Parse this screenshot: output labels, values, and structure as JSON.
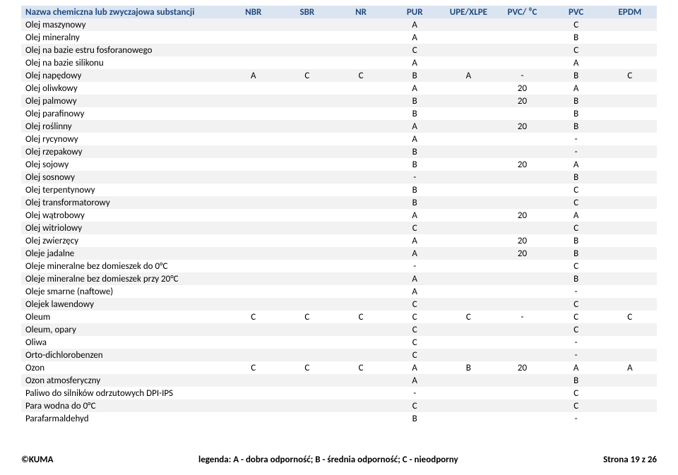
{
  "header": {
    "name_col": "Nazwa chemiczna lub zwyczajowa substancji",
    "cols": [
      "NBR",
      "SBR",
      "NR",
      "PUR",
      "UPE/XLPE",
      "PVC/ ⁰C",
      "PVC",
      "EPDM"
    ],
    "bg": "#dbe5f1",
    "text": "#1f497d"
  },
  "stripes": {
    "odd": "#f2f2f2",
    "even": "#ffffff"
  },
  "rows": [
    {
      "name": "Olej maszynowy",
      "v": [
        "",
        "",
        "",
        "A",
        "",
        "",
        "C",
        ""
      ]
    },
    {
      "name": "Olej mineralny",
      "v": [
        "",
        "",
        "",
        "A",
        "",
        "",
        "B",
        ""
      ]
    },
    {
      "name": "Olej na bazie estru fosforanowego",
      "v": [
        "",
        "",
        "",
        "C",
        "",
        "",
        "C",
        ""
      ]
    },
    {
      "name": "Olej na bazie silikonu",
      "v": [
        "",
        "",
        "",
        "A",
        "",
        "",
        "A",
        ""
      ]
    },
    {
      "name": "Olej napędowy",
      "v": [
        "A",
        "C",
        "C",
        "B",
        "A",
        "-",
        "B",
        "C"
      ]
    },
    {
      "name": "Olej oliwkowy",
      "v": [
        "",
        "",
        "",
        "A",
        "",
        "20",
        "A",
        ""
      ]
    },
    {
      "name": "Olej palmowy",
      "v": [
        "",
        "",
        "",
        "B",
        "",
        "20",
        "B",
        ""
      ]
    },
    {
      "name": "Olej parafinowy",
      "v": [
        "",
        "",
        "",
        "B",
        "",
        "",
        "B",
        ""
      ]
    },
    {
      "name": "Olej roślinny",
      "v": [
        "",
        "",
        "",
        "A",
        "",
        "20",
        "B",
        ""
      ]
    },
    {
      "name": "Olej rycynowy",
      "v": [
        "",
        "",
        "",
        "A",
        "",
        "",
        "-",
        ""
      ]
    },
    {
      "name": "Olej rzepakowy",
      "v": [
        "",
        "",
        "",
        "B",
        "",
        "",
        "-",
        ""
      ]
    },
    {
      "name": "Olej sojowy",
      "v": [
        "",
        "",
        "",
        "B",
        "",
        "20",
        "A",
        ""
      ]
    },
    {
      "name": "Olej sosnowy",
      "v": [
        "",
        "",
        "",
        "-",
        "",
        "",
        "B",
        ""
      ]
    },
    {
      "name": "Olej terpentynowy",
      "v": [
        "",
        "",
        "",
        "B",
        "",
        "",
        "C",
        ""
      ]
    },
    {
      "name": "Olej transformatorowy",
      "v": [
        "",
        "",
        "",
        "B",
        "",
        "",
        "C",
        ""
      ]
    },
    {
      "name": "Olej wątrobowy",
      "v": [
        "",
        "",
        "",
        "A",
        "",
        "20",
        "A",
        ""
      ]
    },
    {
      "name": "Olej witriolowy",
      "v": [
        "",
        "",
        "",
        "C",
        "",
        "",
        "C",
        ""
      ]
    },
    {
      "name": "Olej zwierzęcy",
      "v": [
        "",
        "",
        "",
        "A",
        "",
        "20",
        "B",
        ""
      ]
    },
    {
      "name": "Oleje jadalne",
      "v": [
        "",
        "",
        "",
        "A",
        "",
        "20",
        "B",
        ""
      ]
    },
    {
      "name": "Oleje mineralne bez domieszek do 0°C",
      "v": [
        "",
        "",
        "",
        "-",
        "",
        "",
        "C",
        ""
      ]
    },
    {
      "name": "Oleje mineralne bez domieszek przy 20°C",
      "v": [
        "",
        "",
        "",
        "A",
        "",
        "",
        "B",
        ""
      ]
    },
    {
      "name": "Oleje smarne (naftowe)",
      "v": [
        "",
        "",
        "",
        "A",
        "",
        "",
        "-",
        ""
      ]
    },
    {
      "name": "Olejek lawendowy",
      "v": [
        "",
        "",
        "",
        "C",
        "",
        "",
        "C",
        ""
      ]
    },
    {
      "name": "Oleum",
      "v": [
        "C",
        "C",
        "C",
        "C",
        "C",
        "-",
        "C",
        "C"
      ]
    },
    {
      "name": "Oleum, opary",
      "v": [
        "",
        "",
        "",
        "C",
        "",
        "",
        "C",
        ""
      ]
    },
    {
      "name": "Oliwa",
      "v": [
        "",
        "",
        "",
        "C",
        "",
        "",
        "-",
        ""
      ]
    },
    {
      "name": "Orto-dichlorobenzen",
      "v": [
        "",
        "",
        "",
        "C",
        "",
        "",
        "-",
        ""
      ]
    },
    {
      "name": "Ozon",
      "v": [
        "C",
        "C",
        "C",
        "A",
        "B",
        "20",
        "A",
        "A"
      ]
    },
    {
      "name": "Ozon atmosferyczny",
      "v": [
        "",
        "",
        "",
        "A",
        "",
        "",
        "B",
        ""
      ]
    },
    {
      "name": "Paliwo do silników odrzutowych DPI-IPS",
      "v": [
        "",
        "",
        "",
        "-",
        "",
        "",
        "C",
        ""
      ]
    },
    {
      "name": "Para wodna do 0°C",
      "v": [
        "",
        "",
        "",
        "C",
        "",
        "",
        "C",
        ""
      ]
    },
    {
      "name": "Parafarmaldehyd",
      "v": [
        "",
        "",
        "",
        "B",
        "",
        "",
        "-",
        ""
      ]
    }
  ],
  "footer": {
    "left": "©KUMA",
    "legend": "legenda:  A - dobra odporność;   B - średnia odporność;   C - nieodporny",
    "right": "Strona 19 z 26"
  }
}
